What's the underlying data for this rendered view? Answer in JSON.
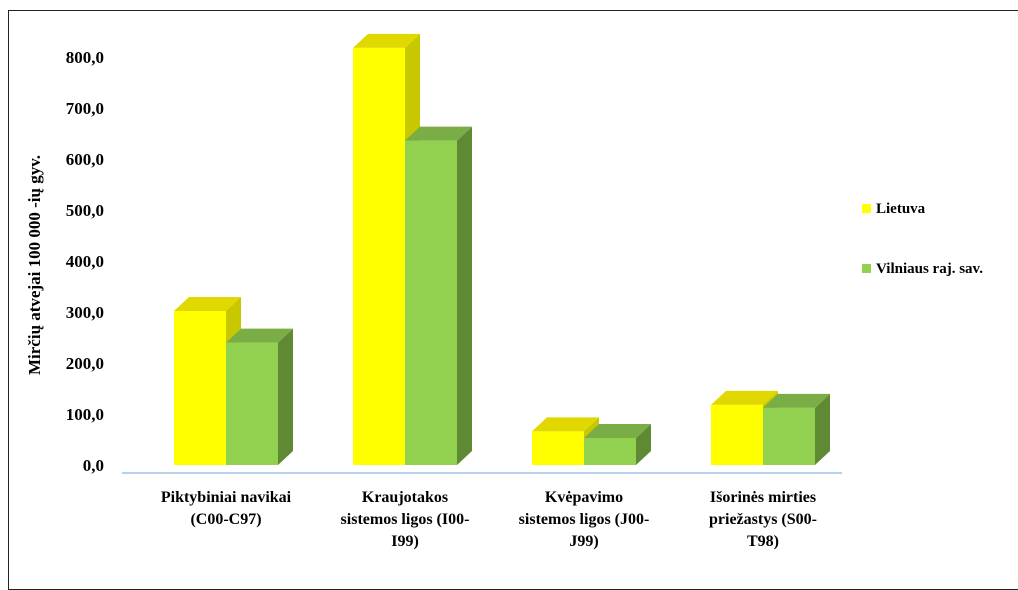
{
  "chart_data": {
    "type": "bar",
    "style": "3d-clustered-column",
    "ylabel": "Mirčių atvejai 100 000 -ių gyv.",
    "ylim": [
      0,
      800
    ],
    "yticks": [
      "0,0",
      "100,0",
      "200,0",
      "300,0",
      "400,0",
      "500,0",
      "600,0",
      "700,0",
      "800,0"
    ],
    "categories": [
      [
        "Piktybiniai navikai",
        "(C00-C97)"
      ],
      [
        "Kraujotakos",
        "sistemos ligos (I00-",
        "I99)"
      ],
      [
        "Kvėpavimo",
        "sistemos ligos (J00-",
        "J99)"
      ],
      [
        "Išorinės mirties",
        "priežastys (S00-",
        "T98)"
      ]
    ],
    "series": [
      {
        "name": "Lietuva",
        "values": [
          302,
          818,
          66,
          118
        ],
        "color": "#ffff00",
        "side": "#c8c800",
        "top": "#e0d800"
      },
      {
        "name": "Vilniaus raj. sav.",
        "values": [
          240,
          636,
          53,
          112
        ],
        "color": "#92d050",
        "side": "#5f8a33",
        "top": "#7aad45"
      }
    ],
    "legend_position": "right",
    "grid": false
  }
}
